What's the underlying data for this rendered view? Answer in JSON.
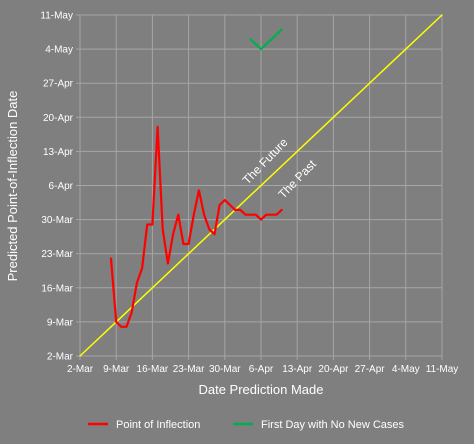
{
  "chart_data": {
    "type": "line",
    "title": "",
    "xlabel": "Date Prediction Made",
    "ylabel": "Predicted Point-of-Inflection Date",
    "x_ticks": [
      "2-Mar",
      "9-Mar",
      "16-Mar",
      "23-Mar",
      "30-Mar",
      "6-Apr",
      "13-Apr",
      "20-Apr",
      "27-Apr",
      "4-May",
      "11-May"
    ],
    "y_ticks": [
      "2-Mar",
      "9-Mar",
      "16-Mar",
      "23-Mar",
      "30-Mar",
      "6-Apr",
      "13-Apr",
      "20-Apr",
      "27-Apr",
      "4-May",
      "11-May"
    ],
    "xlim": [
      "2020-03-02",
      "2020-05-11"
    ],
    "ylim": [
      "2020-03-02",
      "2020-05-11"
    ],
    "grid": true,
    "legend_position": "bottom",
    "series": [
      {
        "name": "Point of Inflection",
        "color": "#ff0000",
        "points": [
          [
            "2020-03-08",
            "2020-03-22"
          ],
          [
            "2020-03-09",
            "2020-03-09"
          ],
          [
            "2020-03-10",
            "2020-03-08"
          ],
          [
            "2020-03-11",
            "2020-03-08"
          ],
          [
            "2020-03-12",
            "2020-03-11"
          ],
          [
            "2020-03-13",
            "2020-03-17"
          ],
          [
            "2020-03-14",
            "2020-03-20"
          ],
          [
            "2020-03-15",
            "2020-03-29"
          ],
          [
            "2020-03-16",
            "2020-03-29"
          ],
          [
            "2020-03-17",
            "2020-04-18"
          ],
          [
            "2020-03-18",
            "2020-03-28"
          ],
          [
            "2020-03-19",
            "2020-03-21"
          ],
          [
            "2020-03-20",
            "2020-03-27"
          ],
          [
            "2020-03-21",
            "2020-03-31"
          ],
          [
            "2020-03-22",
            "2020-03-25"
          ],
          [
            "2020-03-23",
            "2020-03-25"
          ],
          [
            "2020-03-24",
            "2020-03-31"
          ],
          [
            "2020-03-25",
            "2020-04-05"
          ],
          [
            "2020-03-26",
            "2020-03-31"
          ],
          [
            "2020-03-27",
            "2020-03-28"
          ],
          [
            "2020-03-28",
            "2020-03-27"
          ],
          [
            "2020-03-29",
            "2020-04-02"
          ],
          [
            "2020-03-30",
            "2020-04-03"
          ],
          [
            "2020-03-31",
            "2020-04-02"
          ],
          [
            "2020-04-01",
            "2020-04-01"
          ],
          [
            "2020-04-02",
            "2020-04-01"
          ],
          [
            "2020-04-03",
            "2020-03-31"
          ],
          [
            "2020-04-04",
            "2020-03-31"
          ],
          [
            "2020-04-05",
            "2020-03-31"
          ],
          [
            "2020-04-06",
            "2020-03-30"
          ],
          [
            "2020-04-07",
            "2020-03-31"
          ],
          [
            "2020-04-08",
            "2020-03-31"
          ],
          [
            "2020-04-09",
            "2020-03-31"
          ],
          [
            "2020-04-10",
            "2020-04-01"
          ]
        ]
      },
      {
        "name": "First Day with No New Cases",
        "color": "#00b050",
        "points": [
          [
            "2020-04-04",
            "2020-05-06"
          ],
          [
            "2020-04-06",
            "2020-05-04"
          ],
          [
            "2020-04-08",
            "2020-05-06"
          ],
          [
            "2020-04-10",
            "2020-05-08"
          ]
        ]
      },
      {
        "name": "",
        "color": "#ffff00",
        "points": [
          [
            "2020-03-02",
            "2020-03-02"
          ],
          [
            "2020-05-11",
            "2020-05-11"
          ]
        ]
      }
    ],
    "annotations": [
      "The Future",
      "The Past"
    ]
  }
}
